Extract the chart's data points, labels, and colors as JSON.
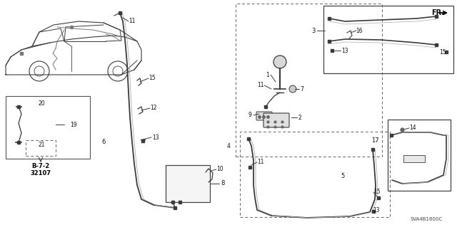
{
  "bg_color": "#ffffff",
  "fig_width": 6.4,
  "fig_height": 3.19,
  "dpi": 100,
  "diagram_code": "SVA4B1600C",
  "line_color": "#3a3a3a",
  "gray": "#888888",
  "darkgray": "#555555",
  "text_color": "#111111"
}
